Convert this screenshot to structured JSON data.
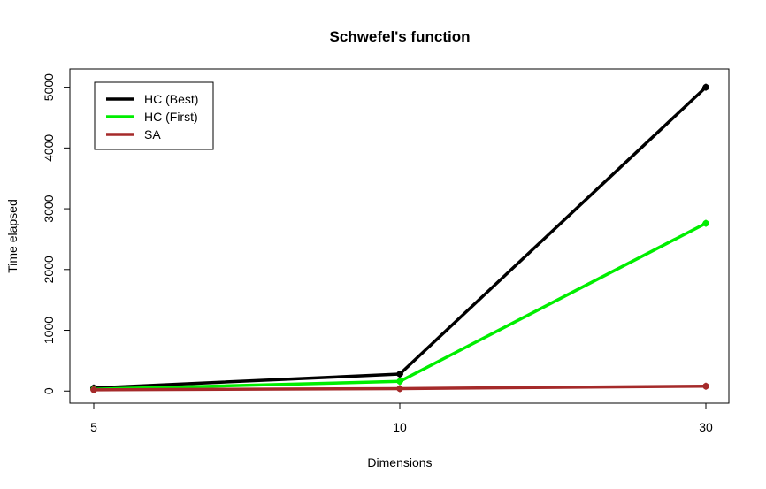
{
  "chart_data": {
    "type": "line",
    "title": "Schwefel's function",
    "xlabel": "Dimensions",
    "ylabel": "Time elapsed",
    "categories": [
      "5",
      "10",
      "30"
    ],
    "x_ticks": [
      "5",
      "10",
      "30"
    ],
    "y_ticks": [
      "0",
      "1000",
      "2000",
      "3000",
      "4000",
      "5000"
    ],
    "ylim": [
      -200,
      5300
    ],
    "grid": false,
    "legend_position": "top-left",
    "series": [
      {
        "name": "HC (Best)",
        "color": "#000000",
        "values": [
          50,
          280,
          5000
        ]
      },
      {
        "name": "HC (First)",
        "color": "#00ee00",
        "values": [
          30,
          160,
          2760
        ]
      },
      {
        "name": "SA",
        "color": "#a52a2a",
        "values": [
          20,
          40,
          80
        ]
      }
    ]
  }
}
